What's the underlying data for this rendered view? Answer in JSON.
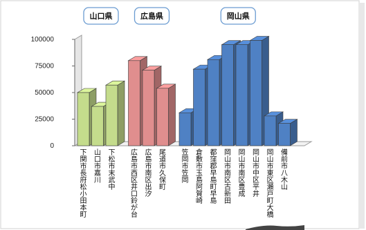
{
  "chart_data": {
    "type": "bar",
    "ylim": [
      0,
      100000
    ],
    "yticks": [
      0,
      25000,
      50000,
      75000,
      100000
    ],
    "grid": false,
    "legend": "none",
    "three_d": true,
    "groups": [
      {
        "label": "山口県",
        "color": "#c4dc8c",
        "categories": [
          "下関市長府松小田本町",
          "山口市嘉川",
          "下松市末武中"
        ],
        "values": [
          50000,
          37000,
          57000
        ]
      },
      {
        "label": "広島県",
        "color": "#e08e8e",
        "categories": [
          "広島市西区井口鈴が台",
          "広島市南区出汐",
          "尾道市久保町"
        ],
        "values": [
          80000,
          71000,
          54000
        ]
      },
      {
        "label": "岡山県",
        "color": "#4f81c4",
        "categories": [
          "笠岡市笠岡",
          "倉敷市玉島阿賀崎",
          "都窪郡早島町早島",
          "岡山市南区古新田",
          "岡山市南区豊成",
          "岡山市中区平井",
          "岡山市東区瀬戸町大橋",
          "備前市八木山"
        ],
        "values": [
          31000,
          72000,
          81000,
          95000,
          95000,
          99000,
          28000,
          21000
        ]
      }
    ]
  }
}
